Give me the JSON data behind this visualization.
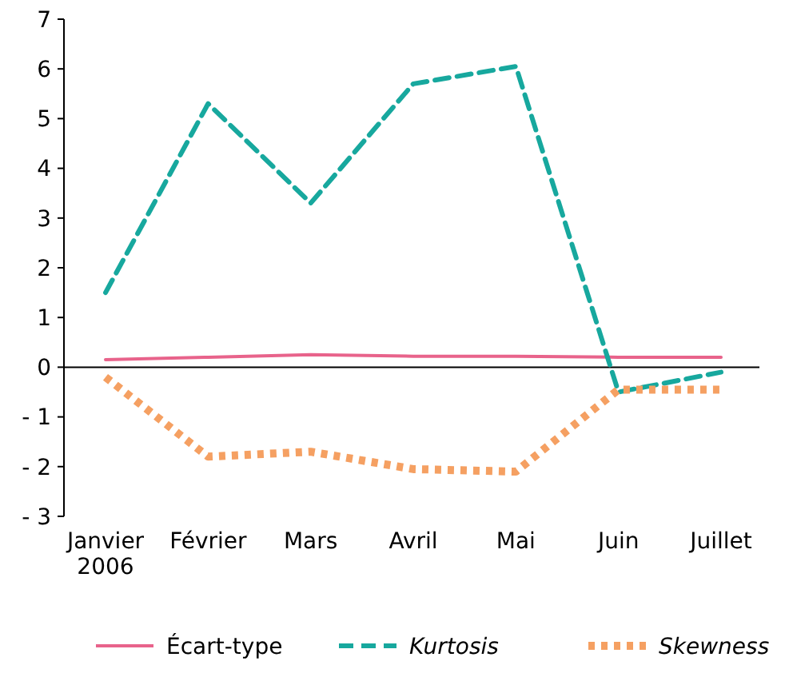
{
  "chart_data": {
    "type": "line",
    "categories": [
      "Janvier\n2006",
      "Février",
      "Mars",
      "Avril",
      "Mai",
      "Juin",
      "Juillet"
    ],
    "series": [
      {
        "name": "Écart-type",
        "color": "#e8638b",
        "line_style": "solid",
        "values": [
          0.15,
          0.2,
          0.25,
          0.22,
          0.22,
          0.2,
          0.2
        ]
      },
      {
        "name": "Kurtosis",
        "color": "#17a89e",
        "line_style": "dashed",
        "values": [
          1.5,
          5.3,
          3.3,
          5.7,
          6.05,
          -0.5,
          -0.1
        ]
      },
      {
        "name": "Skewness",
        "color": "#f5a062",
        "line_style": "dotted",
        "values": [
          -0.2,
          -1.8,
          -1.7,
          -2.05,
          -2.1,
          -0.45,
          -0.45
        ]
      }
    ],
    "ylim": [
      -3,
      7
    ],
    "yticks": [
      7,
      6,
      5,
      4,
      3,
      2,
      1,
      0,
      {
        "value": -1,
        "label": "- 1"
      },
      {
        "value": -2,
        "label": "- 2"
      },
      {
        "value": -3,
        "label": "- 3"
      }
    ],
    "legend": "bottom"
  }
}
